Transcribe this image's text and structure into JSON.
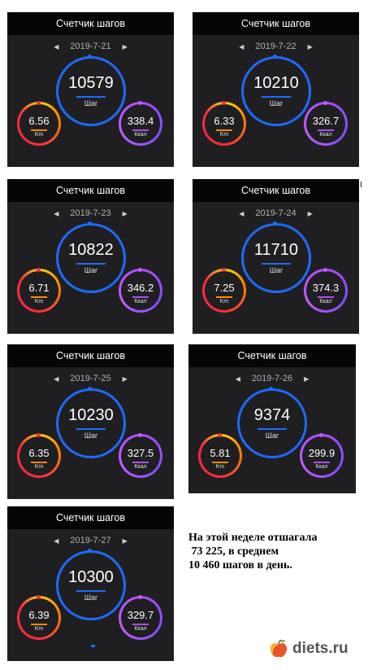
{
  "cards": [
    {
      "title": "Счетчик шагов",
      "date": "2019-7-21",
      "steps": "10579",
      "steps_unit": "Шаг",
      "km": "6.56",
      "km_unit": "Km",
      "kcal": "338.4",
      "kcal_unit": "Ккал"
    },
    {
      "title": "Счетчик шагов",
      "date": "2019-7-22",
      "steps": "10210",
      "steps_unit": "Шаг",
      "km": "6.33",
      "km_unit": "Km",
      "kcal": "326.7",
      "kcal_unit": "Ккал"
    },
    {
      "title": "Счетчик шагов",
      "date": "2019-7-23",
      "steps": "10822",
      "steps_unit": "Шаг",
      "km": "6.71",
      "km_unit": "Km",
      "kcal": "346.2",
      "kcal_unit": "Ккал"
    },
    {
      "title": "Счетчик шагов",
      "date": "2019-7-24",
      "steps": "11710",
      "steps_unit": "Шаг",
      "km": "7.25",
      "km_unit": "Km",
      "kcal": "374.3",
      "kcal_unit": "Ккал"
    },
    {
      "title": "Счетчик шагов",
      "date": "2019-7-25",
      "steps": "10230",
      "steps_unit": "Шаг",
      "km": "6.35",
      "km_unit": "Km",
      "kcal": "327.5",
      "kcal_unit": "Ккал"
    },
    {
      "title": "Счетчик шагов",
      "date": "2019-7-26",
      "steps": "9374",
      "steps_unit": "Шаг",
      "km": "5.81",
      "km_unit": "Km",
      "kcal": "299.9",
      "kcal_unit": "Ккал"
    },
    {
      "title": "Счетчик шагов",
      "date": "2019-7-27",
      "steps": "10300",
      "steps_unit": "Шаг",
      "km": "6.39",
      "km_unit": "Km",
      "kcal": "329.7",
      "kcal_unit": "Ккал"
    }
  ],
  "summary": {
    "line1": "На этой неделе отшагала",
    "line2": " 73 225, в среднем",
    "line3": "10 460 шагов в день."
  },
  "brand": {
    "text": "diets.ru",
    "icon": "apple-icon"
  },
  "colors": {
    "steps_ring": "#1c6bff",
    "km_ring": "#ff3a3a",
    "kcal_ring": "#b14cff",
    "card_bg": "#1f1f21",
    "header_bg": "#050505"
  }
}
